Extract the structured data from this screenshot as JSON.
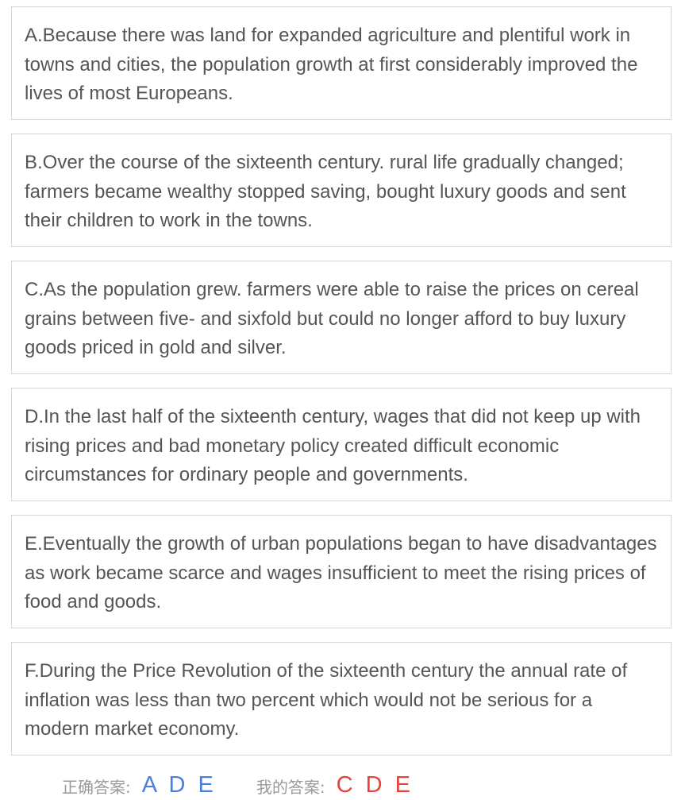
{
  "options": [
    {
      "text": "A.Because there was land for expanded agriculture and plentiful work in towns and cities, the population growth at first considerably improved the lives of most Europeans."
    },
    {
      "text": "B.Over the course of the sixteenth century. rural life gradually changed; farmers became wealthy stopped saving, bought luxury goods and sent their children to work in the towns."
    },
    {
      "text": "C.As the population grew. farmers were able to raise the prices on cereal grains between five- and sixfold but could no longer afford to buy luxury goods priced in gold and silver."
    },
    {
      "text": "D.In the last half of the sixteenth century, wages that did not keep up with rising prices and bad monetary policy created difficult economic circumstances for ordinary people and governments."
    },
    {
      "text": "E.Eventually the growth of urban populations began to have disadvantages as work became scarce and wages insufficient to meet the rising prices of food and goods."
    },
    {
      "text": "F.During the Price Revolution of the sixteenth century the annual rate of inflation was less than two percent which would not be serious for a modern market economy."
    }
  ],
  "answers": {
    "correct_label": "正确答案:",
    "correct_value": "A D E",
    "mine_label": "我的答案:",
    "mine_value": "C D E",
    "colors": {
      "correct": "#4a7ee0",
      "mine": "#e8433a"
    }
  }
}
